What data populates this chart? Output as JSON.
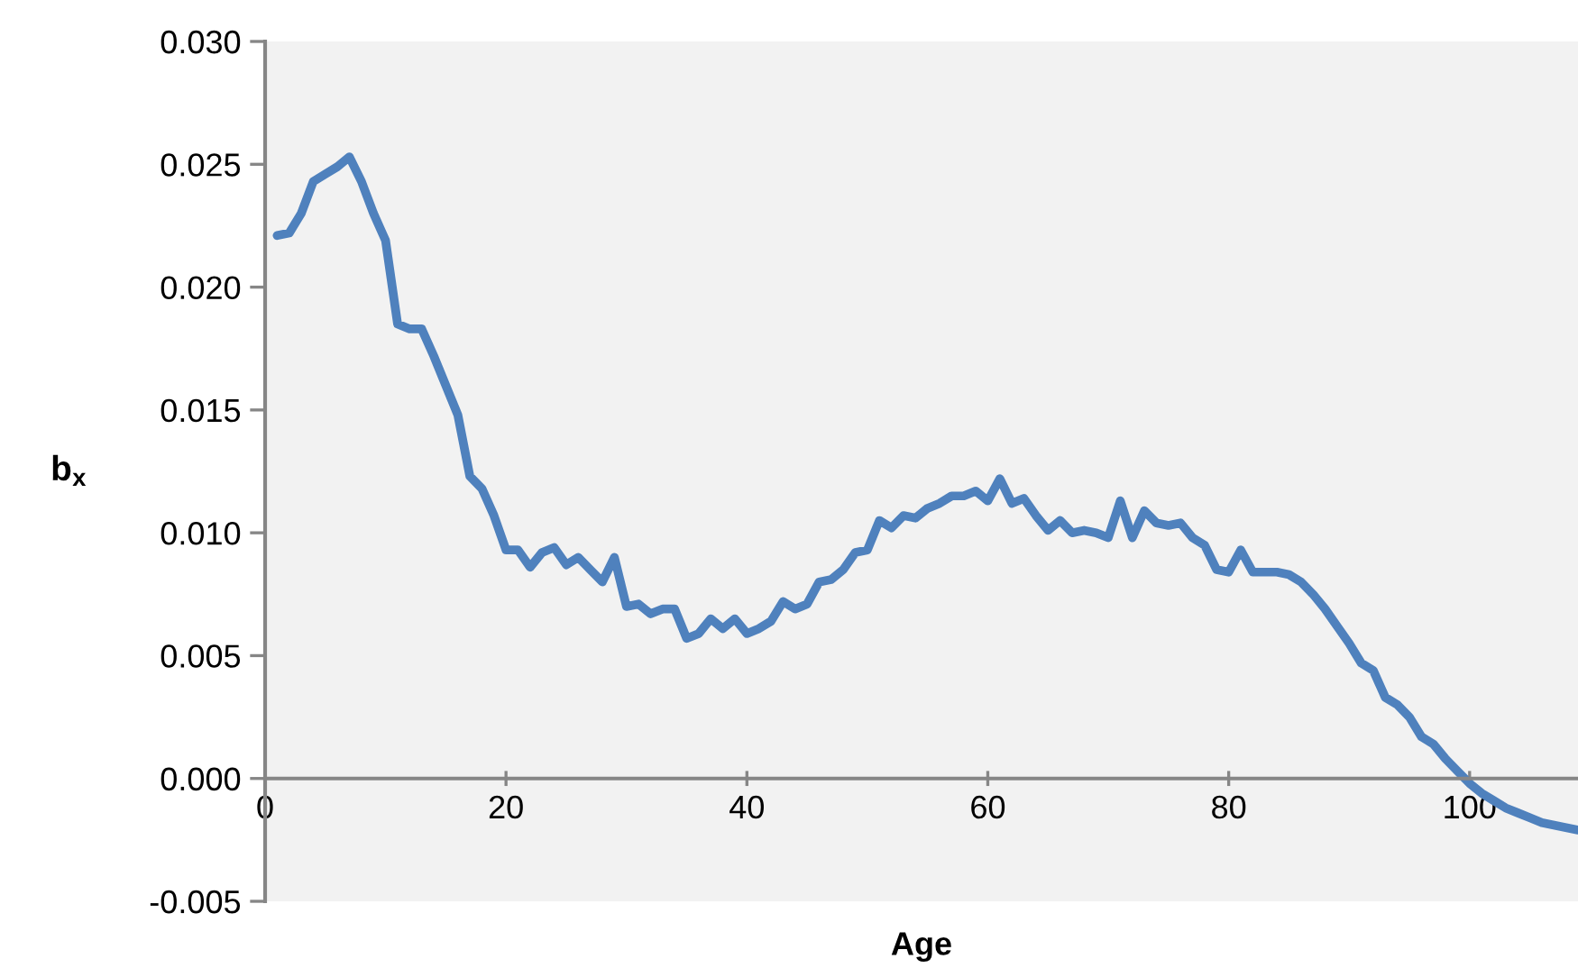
{
  "chart_data": {
    "type": "line",
    "xlabel": "Age",
    "ylabel": "b$_{x}$",
    "x": [
      1,
      2,
      3,
      4,
      5,
      6,
      7,
      8,
      9,
      10,
      11,
      12,
      13,
      14,
      15,
      16,
      17,
      18,
      19,
      20,
      21,
      22,
      23,
      24,
      25,
      26,
      27,
      28,
      29,
      30,
      31,
      32,
      33,
      34,
      35,
      36,
      37,
      38,
      39,
      40,
      41,
      42,
      43,
      44,
      45,
      46,
      47,
      48,
      49,
      50,
      51,
      52,
      53,
      54,
      55,
      56,
      57,
      58,
      59,
      60,
      61,
      62,
      63,
      64,
      65,
      66,
      67,
      68,
      69,
      70,
      71,
      72,
      73,
      74,
      75,
      76,
      77,
      78,
      79,
      80,
      81,
      82,
      83,
      84,
      85,
      86,
      87,
      88,
      89,
      90,
      91,
      92,
      93,
      94,
      95,
      96,
      97,
      98,
      99,
      100,
      101,
      102,
      103,
      104,
      105,
      106,
      107,
      108,
      109
    ],
    "series": [
      {
        "color": "#4f81bd",
        "values": [
          0.0221,
          0.0222,
          0.023,
          0.0243,
          0.0246,
          0.0249,
          0.0253,
          0.0243,
          0.023,
          0.0219,
          0.0185,
          0.0183,
          0.0183,
          0.0172,
          0.016,
          0.0148,
          0.0123,
          0.0118,
          0.0107,
          0.0093,
          0.0093,
          0.0086,
          0.0092,
          0.0094,
          0.0087,
          0.009,
          0.0085,
          0.008,
          0.009,
          0.007,
          0.0071,
          0.0067,
          0.0069,
          0.0069,
          0.0057,
          0.0059,
          0.0065,
          0.0061,
          0.0065,
          0.0059,
          0.0061,
          0.0064,
          0.0072,
          0.0069,
          0.0071,
          0.008,
          0.0081,
          0.0085,
          0.0092,
          0.0093,
          0.0105,
          0.0102,
          0.0107,
          0.0106,
          0.011,
          0.0112,
          0.0115,
          0.0115,
          0.0117,
          0.0113,
          0.0122,
          0.0112,
          0.0114,
          0.0107,
          0.0101,
          0.0105,
          0.01,
          0.0101,
          0.01,
          0.0098,
          0.0113,
          0.0098,
          0.0109,
          0.0104,
          0.0103,
          0.0104,
          0.0098,
          0.0095,
          0.0085,
          0.0084,
          0.0093,
          0.0084,
          0.0084,
          0.0084,
          0.0083,
          0.008,
          0.0075,
          0.0069,
          0.0062,
          0.0055,
          0.0047,
          0.0044,
          0.0033,
          0.003,
          0.0025,
          0.0017,
          0.0014,
          0.0008,
          0.0003,
          -0.0002,
          -0.0006,
          -0.0009,
          -0.0012,
          -0.0014,
          -0.0016,
          -0.0018,
          -0.0019,
          -0.002,
          -0.0021
        ]
      }
    ],
    "xlim": [
      0,
      109
    ],
    "xticks": [
      0,
      20,
      40,
      60,
      80,
      100
    ],
    "ylim": [
      -0.005,
      0.03
    ],
    "yticks": [
      {
        "value": -0.005,
        "label": "-0.005"
      },
      {
        "value": 0.0,
        "label": "0.000"
      },
      {
        "value": 0.005,
        "label": "0.005"
      },
      {
        "value": 0.01,
        "label": "0.010"
      },
      {
        "value": 0.015,
        "label": "0.015"
      },
      {
        "value": 0.02,
        "label": "0.020"
      },
      {
        "value": 0.025,
        "label": "0.025"
      },
      {
        "value": 0.03,
        "label": "0.030"
      }
    ],
    "grid": false,
    "marker": "none",
    "line_style": "solid"
  }
}
